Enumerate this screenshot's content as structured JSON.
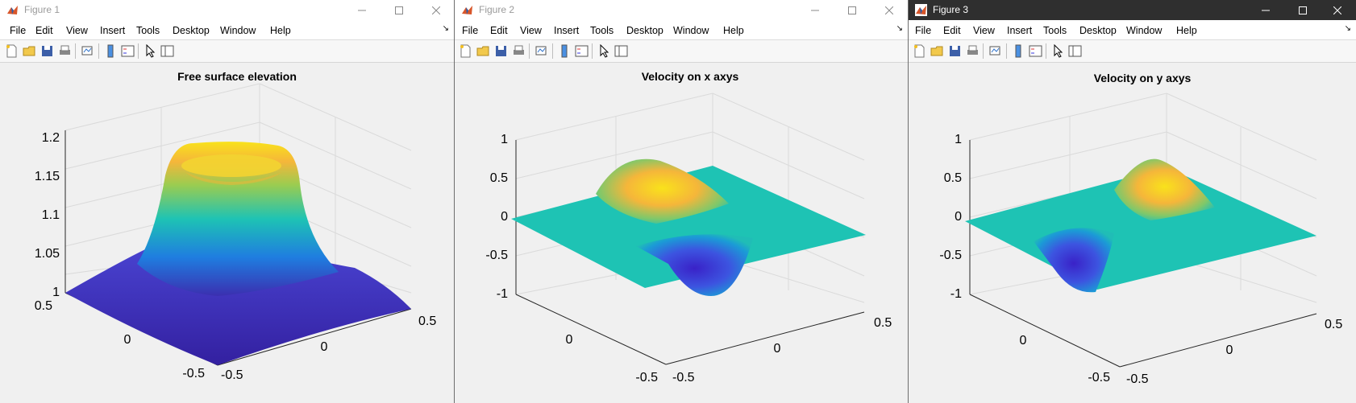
{
  "windows": [
    {
      "title": "Figure 1",
      "active": false,
      "menu": [
        "File",
        "Edit",
        "View",
        "Insert",
        "Tools",
        "Desktop",
        "Window",
        "Help"
      ],
      "plot": {
        "title": "Free surface elevation",
        "z_ticks": [
          "1",
          "1.05",
          "1.1",
          "1.15",
          "1.2"
        ],
        "y_ticks": [
          "0.5",
          "0",
          "-0.5"
        ],
        "x_ticks": [
          "-0.5",
          "0",
          "0.5"
        ]
      }
    },
    {
      "title": "Figure 2",
      "active": false,
      "menu": [
        "File",
        "Edit",
        "View",
        "Insert",
        "Tools",
        "Desktop",
        "Window",
        "Help"
      ],
      "plot": {
        "title": "Velocity on x axys",
        "z_ticks": [
          "-1",
          "-0.5",
          "0",
          "0.5",
          "1"
        ],
        "y_ticks": [
          "0.5",
          "0",
          "-0.5"
        ],
        "x_ticks": [
          "-0.5",
          "0",
          "0.5"
        ]
      }
    },
    {
      "title": "Figure 3",
      "active": true,
      "menu": [
        "File",
        "Edit",
        "View",
        "Insert",
        "Tools",
        "Desktop",
        "Window",
        "Help"
      ],
      "plot": {
        "title": "Velocity on y axys",
        "z_ticks": [
          "-1",
          "-0.5",
          "0",
          "0.5",
          "1"
        ],
        "y_ticks": [
          "0.5",
          "0",
          "-0.5"
        ],
        "x_ticks": [
          "-0.5",
          "0",
          "0.5"
        ]
      }
    }
  ],
  "colors": {
    "parula_low": "#3b2fb0",
    "parula_mid": "#1ec3b4",
    "parula_high": "#f9e21b",
    "active_titlebar": "#2f2f2f"
  }
}
